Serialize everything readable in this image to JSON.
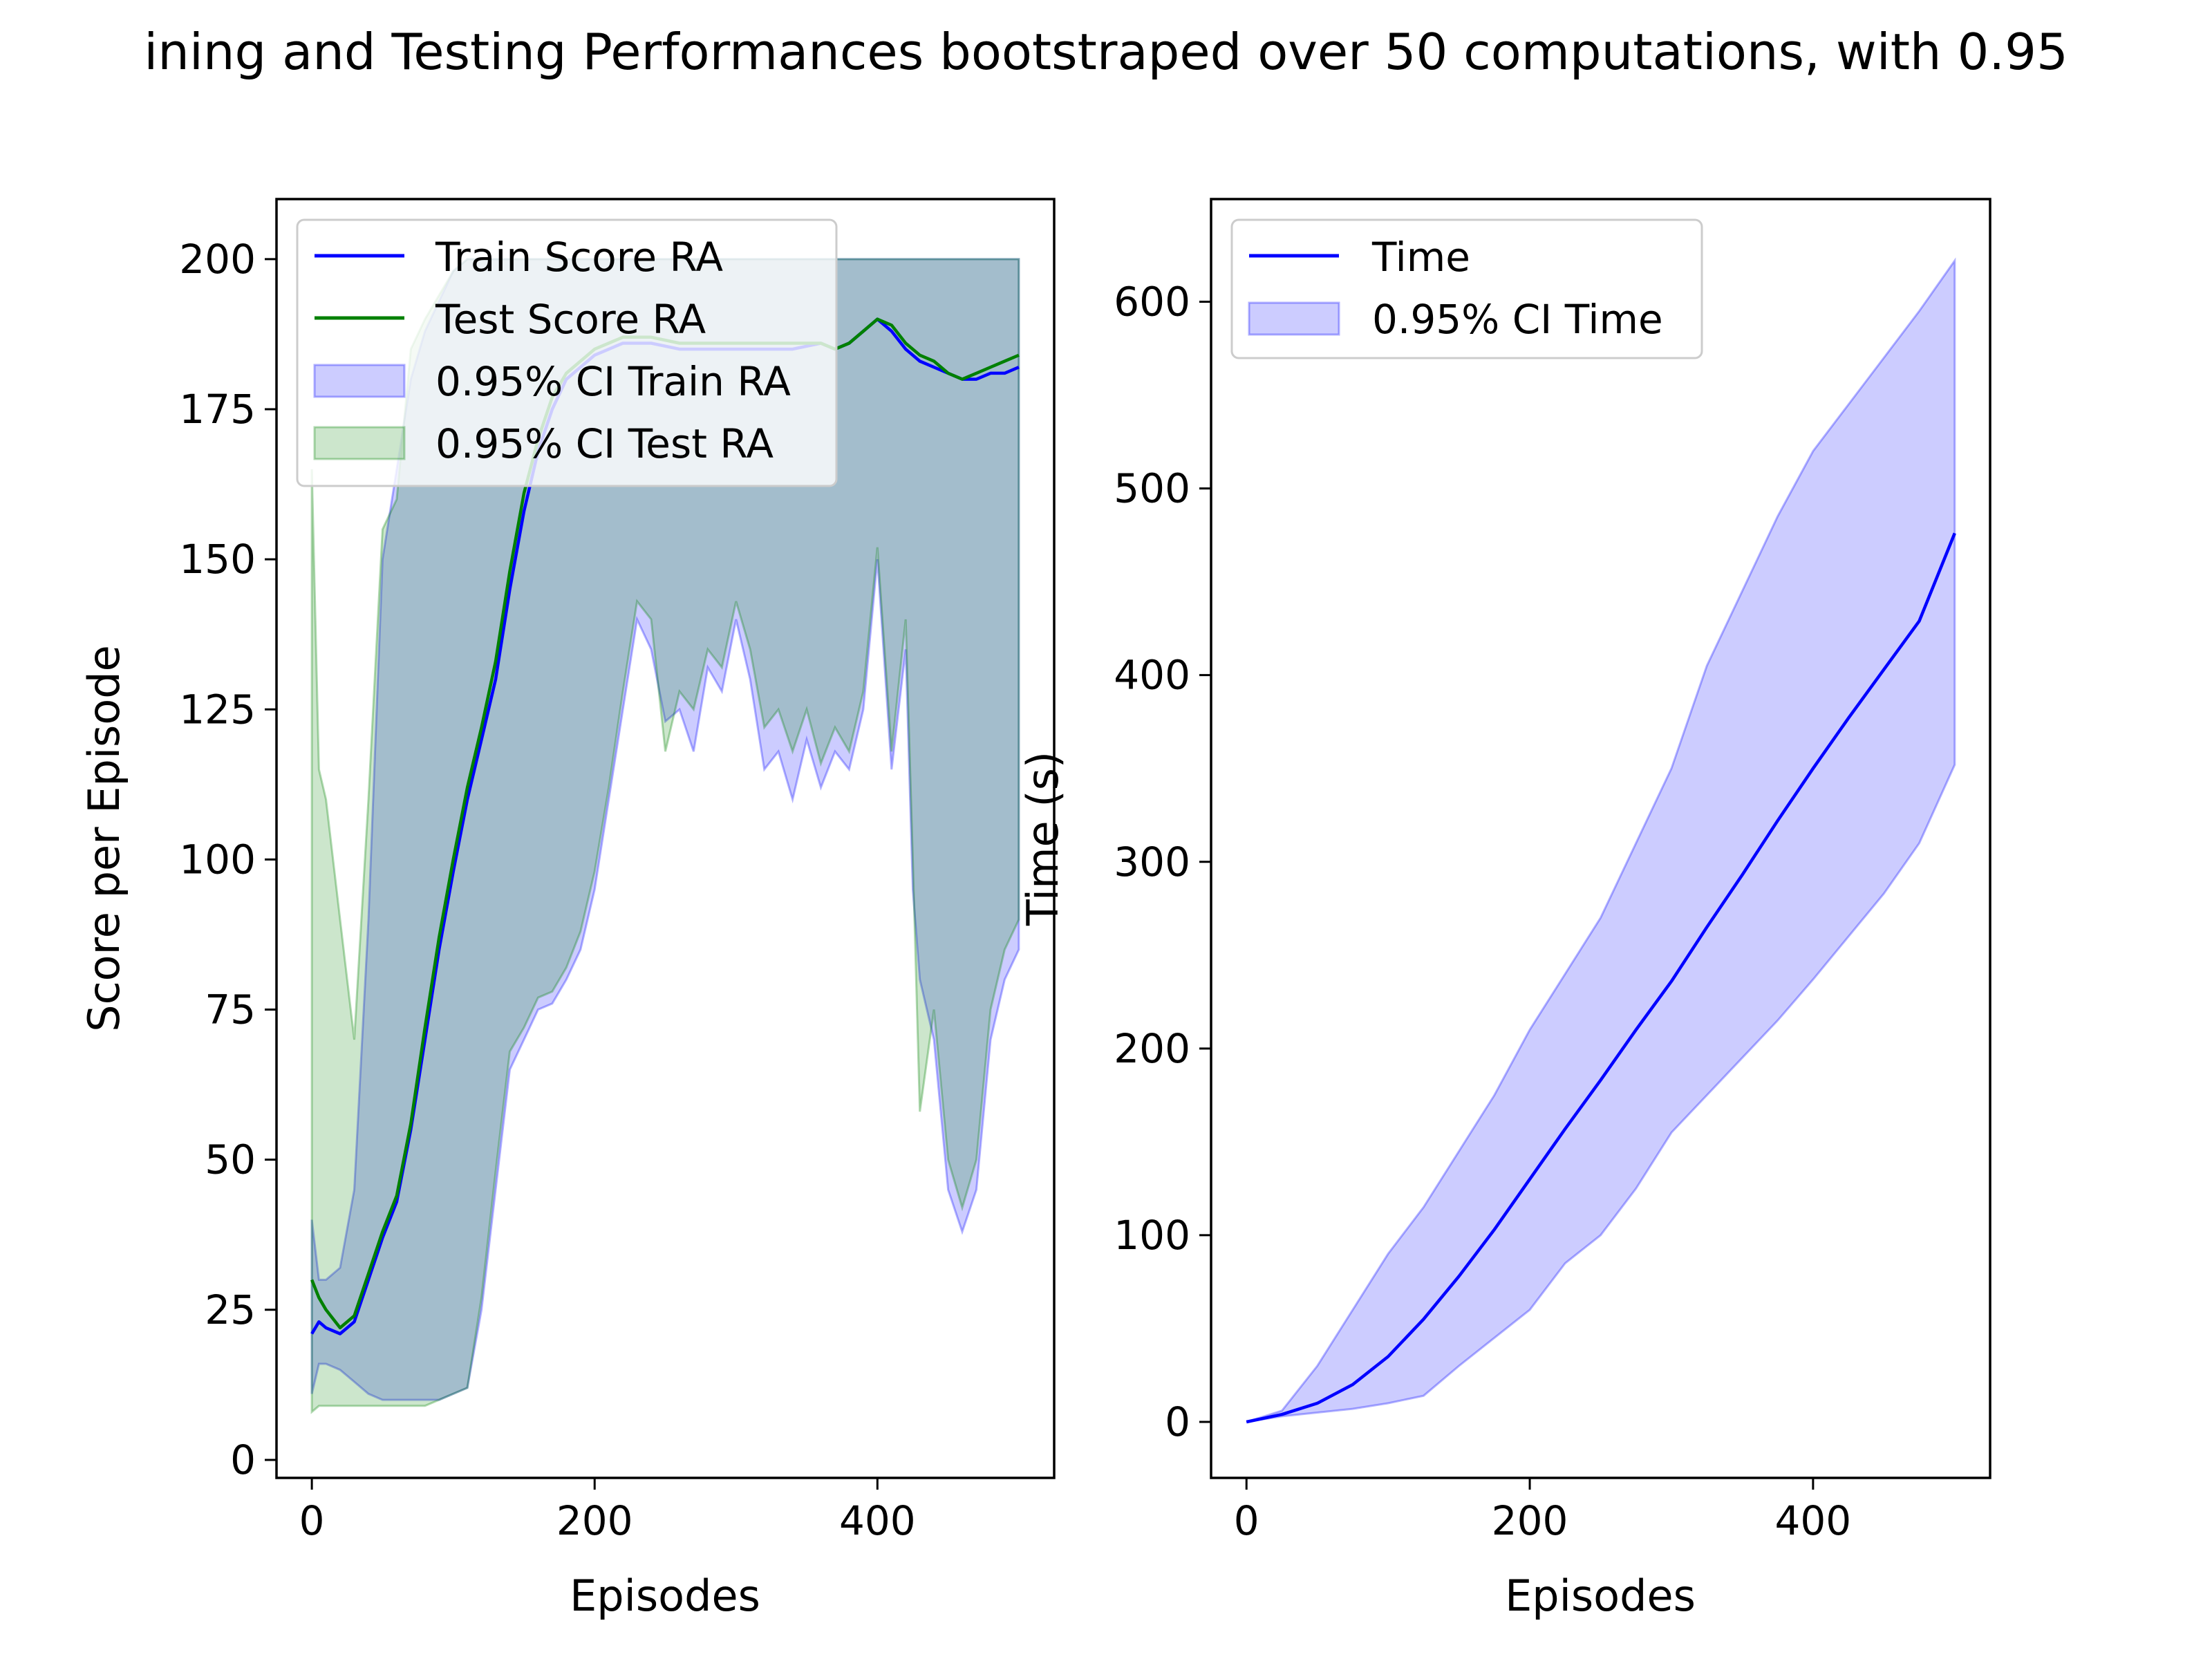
{
  "figure": {
    "title": "ining and Testing Performances bootstraped over 50 computations, with 0.95"
  },
  "colors": {
    "train": "#0000ff",
    "test": "#008000",
    "train_ci_fill": "rgba(0,0,255,0.2)",
    "test_ci_fill": "rgba(0,128,0,0.2)",
    "overlap_fill": "#a6bccb"
  },
  "chart_data": [
    {
      "type": "line",
      "xlabel": "Episodes",
      "ylabel": "Score per Episode",
      "xlim": [
        -25,
        525
      ],
      "ylim": [
        -3,
        210
      ],
      "xticks": [
        0,
        200,
        400
      ],
      "yticks": [
        0,
        25,
        50,
        75,
        100,
        125,
        150,
        175,
        200
      ],
      "grid": false,
      "legend": {
        "placement": "upper-left",
        "entries": [
          "Train Score RA",
          "Test Score RA",
          "0.95% CI Train RA",
          "0.95% CI Test RA"
        ]
      },
      "series": [
        {
          "name": "Train Score RA",
          "kind": "line",
          "color": "#0000ff",
          "x": [
            0,
            5,
            10,
            20,
            30,
            40,
            50,
            60,
            70,
            80,
            90,
            100,
            110,
            120,
            130,
            140,
            150,
            160,
            170,
            180,
            200,
            220,
            240,
            260,
            280,
            300,
            320,
            340,
            360,
            370,
            380,
            390,
            400,
            410,
            420,
            430,
            440,
            450,
            460,
            470,
            480,
            490,
            500
          ],
          "y": [
            21,
            23,
            22,
            21,
            23,
            30,
            37,
            43,
            55,
            70,
            85,
            98,
            110,
            120,
            130,
            145,
            158,
            168,
            175,
            180,
            184,
            186,
            186,
            185,
            185,
            185,
            185,
            185,
            186,
            185,
            186,
            188,
            190,
            188,
            185,
            183,
            182,
            181,
            180,
            180,
            181,
            181,
            182
          ]
        },
        {
          "name": "Test Score RA",
          "kind": "line",
          "color": "#008000",
          "x": [
            0,
            5,
            10,
            20,
            30,
            40,
            50,
            60,
            70,
            80,
            90,
            100,
            110,
            120,
            130,
            140,
            150,
            160,
            170,
            180,
            200,
            220,
            240,
            260,
            280,
            300,
            320,
            340,
            360,
            370,
            380,
            390,
            400,
            410,
            420,
            430,
            440,
            450,
            460,
            470,
            480,
            490,
            500
          ],
          "y": [
            30,
            27,
            25,
            22,
            24,
            31,
            38,
            44,
            56,
            72,
            87,
            100,
            112,
            122,
            133,
            148,
            161,
            170,
            177,
            181,
            185,
            187,
            187,
            186,
            186,
            186,
            186,
            186,
            186,
            185,
            186,
            188,
            190,
            189,
            186,
            184,
            183,
            181,
            180,
            181,
            182,
            183,
            184
          ]
        },
        {
          "name": "0.95% CI Train RA",
          "kind": "band",
          "color": "#0000ff",
          "x": [
            0,
            5,
            10,
            20,
            30,
            40,
            50,
            60,
            70,
            80,
            90,
            100,
            110,
            120,
            130,
            140,
            150,
            160,
            170,
            180,
            190,
            200,
            210,
            220,
            230,
            240,
            250,
            260,
            270,
            280,
            290,
            300,
            310,
            320,
            330,
            340,
            350,
            360,
            370,
            380,
            390,
            400,
            410,
            420,
            425,
            430,
            440,
            450,
            460,
            470,
            480,
            490,
            500
          ],
          "lower": [
            11,
            16,
            16,
            15,
            13,
            11,
            10,
            10,
            10,
            10,
            10,
            11,
            12,
            25,
            45,
            65,
            70,
            75,
            76,
            80,
            85,
            95,
            110,
            125,
            140,
            135,
            123,
            125,
            118,
            132,
            128,
            140,
            130,
            115,
            118,
            110,
            120,
            112,
            118,
            115,
            125,
            150,
            115,
            135,
            95,
            80,
            70,
            45,
            38,
            45,
            70,
            80,
            85
          ],
          "upper": [
            40,
            30,
            30,
            32,
            45,
            90,
            150,
            165,
            180,
            188,
            193,
            198,
            200,
            200,
            200,
            200,
            200,
            200,
            200,
            200,
            200,
            200,
            200,
            200,
            200,
            200,
            200,
            200,
            200,
            200,
            200,
            200,
            200,
            200,
            200,
            200,
            200,
            200,
            200,
            200,
            200,
            200,
            200,
            200,
            200,
            200,
            200,
            200,
            200,
            200,
            200,
            200,
            200
          ]
        },
        {
          "name": "0.95% CI Test RA",
          "kind": "band",
          "color": "#008000",
          "x": [
            0,
            5,
            10,
            20,
            30,
            40,
            50,
            60,
            70,
            80,
            90,
            100,
            110,
            120,
            130,
            140,
            150,
            160,
            170,
            180,
            190,
            200,
            210,
            220,
            230,
            240,
            250,
            260,
            270,
            280,
            290,
            300,
            310,
            320,
            330,
            340,
            350,
            360,
            370,
            380,
            390,
            400,
            410,
            420,
            425,
            430,
            440,
            450,
            460,
            470,
            480,
            490,
            500
          ],
          "lower": [
            8,
            9,
            9,
            9,
            9,
            9,
            9,
            9,
            9,
            9,
            10,
            11,
            12,
            27,
            48,
            68,
            72,
            77,
            78,
            82,
            88,
            98,
            112,
            128,
            143,
            140,
            118,
            128,
            125,
            135,
            132,
            143,
            135,
            122,
            125,
            118,
            125,
            116,
            122,
            118,
            128,
            152,
            118,
            140,
            100,
            58,
            75,
            50,
            42,
            50,
            75,
            85,
            90
          ],
          "upper": [
            165,
            115,
            110,
            90,
            70,
            110,
            155,
            160,
            185,
            190,
            194,
            198,
            200,
            200,
            200,
            200,
            200,
            200,
            200,
            200,
            200,
            200,
            200,
            200,
            200,
            200,
            200,
            200,
            200,
            200,
            200,
            200,
            200,
            200,
            200,
            200,
            200,
            200,
            200,
            200,
            200,
            200,
            200,
            200,
            200,
            200,
            200,
            200,
            200,
            200,
            200,
            200,
            200
          ]
        }
      ]
    },
    {
      "type": "line",
      "xlabel": "Episodes",
      "ylabel": "Time (s)",
      "xlim": [
        -25,
        525
      ],
      "ylim": [
        -30,
        655
      ],
      "xticks": [
        0,
        200,
        400
      ],
      "yticks": [
        0,
        100,
        200,
        300,
        400,
        500,
        600
      ],
      "grid": false,
      "legend": {
        "placement": "upper-left",
        "entries": [
          "Time",
          "0.95% CI Time"
        ]
      },
      "series": [
        {
          "name": "Time",
          "kind": "line",
          "color": "#0000ff",
          "x": [
            0,
            25,
            50,
            75,
            100,
            125,
            150,
            175,
            200,
            225,
            250,
            275,
            300,
            325,
            350,
            375,
            400,
            425,
            450,
            475,
            500
          ],
          "y": [
            0,
            4,
            10,
            20,
            35,
            55,
            78,
            103,
            130,
            157,
            183,
            210,
            236,
            265,
            293,
            322,
            350,
            377,
            403,
            429,
            476
          ]
        },
        {
          "name": "0.95% CI Time",
          "kind": "band",
          "color": "#0000ff",
          "x": [
            0,
            25,
            50,
            75,
            100,
            125,
            150,
            175,
            200,
            225,
            250,
            275,
            300,
            325,
            350,
            375,
            400,
            425,
            450,
            475,
            500
          ],
          "lower": [
            0,
            3,
            5,
            7,
            10,
            14,
            30,
            45,
            60,
            85,
            100,
            125,
            155,
            175,
            195,
            215,
            237,
            260,
            283,
            310,
            352
          ],
          "upper": [
            0,
            6,
            30,
            60,
            90,
            115,
            145,
            175,
            210,
            240,
            270,
            310,
            350,
            405,
            445,
            485,
            520,
            545,
            570,
            595,
            622
          ]
        }
      ]
    }
  ]
}
